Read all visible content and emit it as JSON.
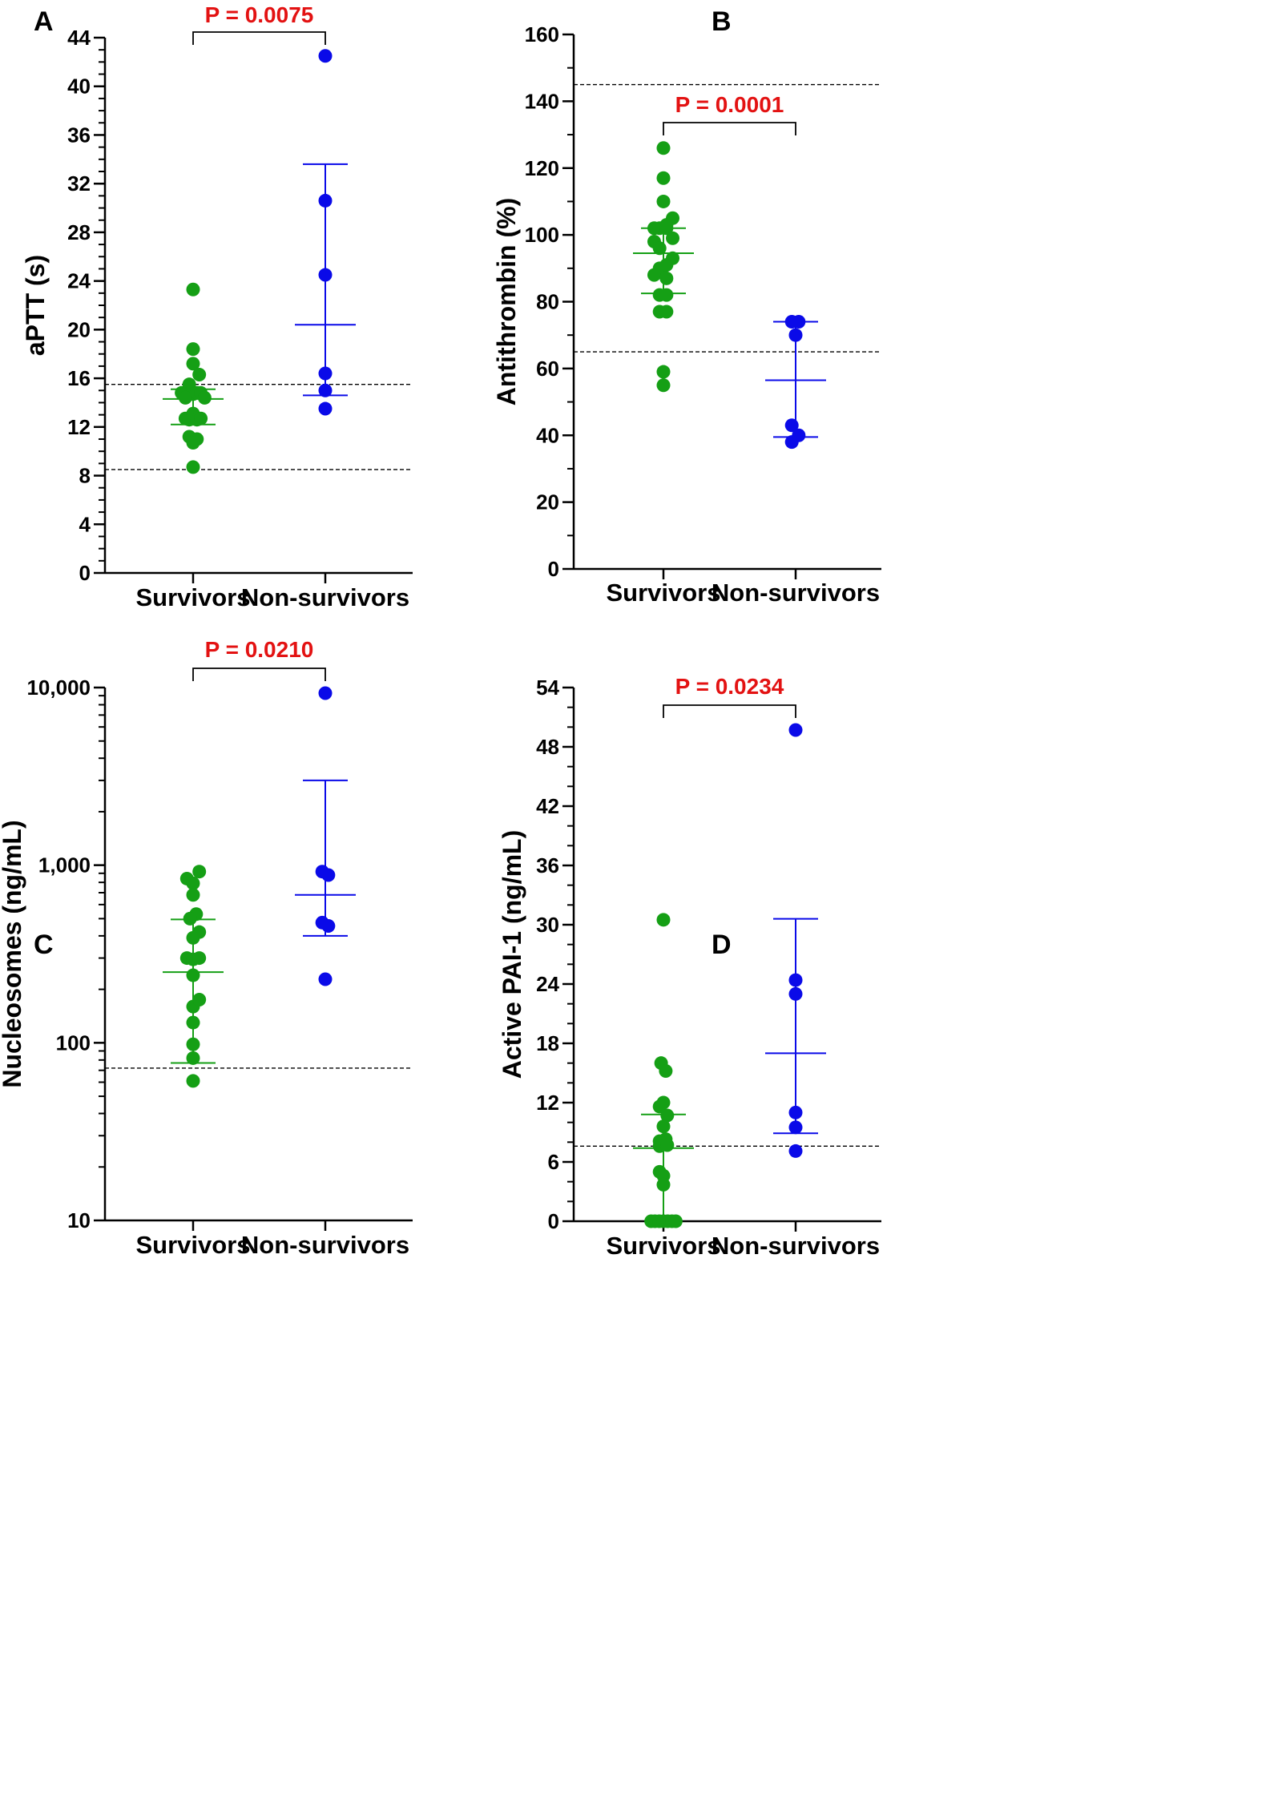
{
  "colors": {
    "survivors": "#159F15",
    "non_survivors": "#0A0AE8",
    "pvalue": "#E31212",
    "axis": "#000000"
  },
  "chart_data": [
    {
      "panel": "A",
      "type": "scatter",
      "scale": "linear",
      "ylabel": "aPTT (s)",
      "ylim": [
        0,
        44
      ],
      "yticks": [
        0,
        4,
        8,
        12,
        16,
        20,
        24,
        28,
        32,
        36,
        40,
        44
      ],
      "ytick_labels": [
        "0",
        "4",
        "8",
        "12",
        "16",
        "20",
        "24",
        "28",
        "32",
        "36",
        "40",
        "44"
      ],
      "minor_step": 1,
      "categories": [
        "Survivors",
        "Non-survivors"
      ],
      "pvalue": "P = 0.0075",
      "ref_lines": [
        15.5,
        8.5
      ],
      "series": [
        {
          "name": "Survivors",
          "points": [
            [
              0,
              23.3
            ],
            [
              0,
              18.4
            ],
            [
              0,
              17.2
            ],
            [
              0.16,
              16.3
            ],
            [
              -0.1,
              15.5
            ],
            [
              -0.3,
              14.8
            ],
            [
              -0.2,
              14.7
            ],
            [
              -0.1,
              14.7
            ],
            [
              0,
              14.7
            ],
            [
              0.1,
              14.8
            ],
            [
              0.2,
              14.8
            ],
            [
              -0.2,
              14.4
            ],
            [
              0.3,
              14.4
            ],
            [
              -0.2,
              12.7
            ],
            [
              -0.1,
              12.6
            ],
            [
              0,
              13.1
            ],
            [
              0.1,
              12.6
            ],
            [
              0.2,
              12.7
            ],
            [
              -0.1,
              11.2
            ],
            [
              0.1,
              11.0
            ],
            [
              0,
              10.7
            ],
            [
              0,
              8.7
            ]
          ],
          "error": {
            "center": 14.3,
            "low": 12.2,
            "high": 15.1
          }
        },
        {
          "name": "Non-survivors",
          "points": [
            [
              0,
              42.5
            ],
            [
              0,
              30.6
            ],
            [
              0,
              24.5
            ],
            [
              0,
              16.4
            ],
            [
              0,
              15.0
            ],
            [
              0,
              13.5
            ]
          ],
          "error": {
            "center": 20.4,
            "low": 14.6,
            "high": 33.6
          }
        }
      ]
    },
    {
      "panel": "B",
      "type": "scatter",
      "scale": "linear",
      "ylabel": "Antithrombin (%)",
      "ylim": [
        0,
        160
      ],
      "yticks": [
        0,
        20,
        40,
        60,
        80,
        100,
        120,
        140,
        160
      ],
      "ytick_labels": [
        "0",
        "20",
        "40",
        "60",
        "80",
        "100",
        "120",
        "140",
        "160"
      ],
      "minor_step": 10,
      "categories": [
        "Survivors",
        "Non-survivors"
      ],
      "pvalue": "P = 0.0001",
      "ref_lines": [
        145,
        65
      ],
      "series": [
        {
          "name": "Survivors",
          "points": [
            [
              0,
              126
            ],
            [
              0,
              117
            ],
            [
              0,
              110
            ],
            [
              0.24,
              105
            ],
            [
              -0.24,
              102
            ],
            [
              -0.1,
              102
            ],
            [
              0.08,
              102
            ],
            [
              0.08,
              103
            ],
            [
              -0.24,
              98
            ],
            [
              0.24,
              99
            ],
            [
              0.24,
              93
            ],
            [
              -0.1,
              96
            ],
            [
              -0.1,
              90
            ],
            [
              0.08,
              91
            ],
            [
              -0.24,
              88
            ],
            [
              0.08,
              87
            ],
            [
              -0.1,
              82
            ],
            [
              0.08,
              82
            ],
            [
              -0.1,
              77
            ],
            [
              0.08,
              77
            ],
            [
              0,
              59
            ],
            [
              0,
              55
            ]
          ],
          "error": {
            "center": 94.5,
            "low": 82.5,
            "high": 102.0
          }
        },
        {
          "name": "Non-survivors",
          "points": [
            [
              -0.1,
              74
            ],
            [
              0.08,
              74
            ],
            [
              0,
              70
            ],
            [
              -0.1,
              43
            ],
            [
              0.08,
              40
            ],
            [
              -0.1,
              38
            ]
          ],
          "error": {
            "center": 56.5,
            "low": 39.5,
            "high": 74.0
          }
        }
      ]
    },
    {
      "panel": "C",
      "type": "scatter",
      "scale": "log",
      "ylabel": "Nucleosomes (ng/mL)",
      "ylim": [
        10,
        10000
      ],
      "yticks": [
        10,
        100,
        1000,
        10000
      ],
      "ytick_labels": [
        "10",
        "100",
        "1,000",
        "10,000"
      ],
      "categories": [
        "Survivors",
        "Non-survivors"
      ],
      "pvalue": "P = 0.0210",
      "ref_lines": [
        72
      ],
      "series": [
        {
          "name": "Survivors",
          "points": [
            [
              -0.16,
              840
            ],
            [
              0,
              790
            ],
            [
              0.16,
              920
            ],
            [
              0,
              680
            ],
            [
              0.08,
              530
            ],
            [
              -0.08,
              500
            ],
            [
              0.16,
              420
            ],
            [
              0,
              390
            ],
            [
              -0.16,
              300
            ],
            [
              0,
              295
            ],
            [
              0.16,
              300
            ],
            [
              0,
              240
            ],
            [
              0,
              160
            ],
            [
              0.16,
              175
            ],
            [
              0,
              130
            ],
            [
              0,
              98
            ],
            [
              0,
              82
            ],
            [
              0,
              61
            ]
          ],
          "error": {
            "center": 250,
            "low": 77,
            "high": 495
          }
        },
        {
          "name": "Non-survivors",
          "points": [
            [
              0,
              9300
            ],
            [
              -0.08,
              920
            ],
            [
              0.08,
              880
            ],
            [
              -0.08,
              475
            ],
            [
              0.08,
              455
            ],
            [
              0,
              228
            ]
          ],
          "error": {
            "center": 680,
            "low": 400,
            "high": 3000
          }
        }
      ]
    },
    {
      "panel": "D",
      "type": "scatter",
      "scale": "linear",
      "ylabel": "Active PAI-1 (ng/mL)",
      "ylim": [
        0,
        54
      ],
      "yticks": [
        0,
        6,
        12,
        18,
        24,
        30,
        36,
        42,
        48,
        54
      ],
      "ytick_labels": [
        "0",
        "6",
        "12",
        "18",
        "24",
        "30",
        "36",
        "42",
        "48",
        "54"
      ],
      "minor_step": 2,
      "categories": [
        "Survivors",
        "Non-survivors"
      ],
      "pvalue": "P = 0.0234",
      "ref_lines": [
        7.6
      ],
      "series": [
        {
          "name": "Survivors",
          "points": [
            [
              0,
              30.5
            ],
            [
              -0.06,
              16.0
            ],
            [
              0.06,
              15.2
            ],
            [
              0,
              12.0
            ],
            [
              -0.1,
              11.6
            ],
            [
              0.1,
              10.7
            ],
            [
              0,
              9.6
            ],
            [
              -0.1,
              8.1
            ],
            [
              0.06,
              8.3
            ],
            [
              -0.1,
              7.6
            ],
            [
              0.1,
              7.7
            ],
            [
              -0.1,
              5.0
            ],
            [
              0,
              4.6
            ],
            [
              0,
              3.7
            ],
            [
              -0.32,
              0
            ],
            [
              -0.22,
              0
            ],
            [
              -0.11,
              0
            ],
            [
              0,
              0
            ],
            [
              0.11,
              0
            ],
            [
              0.22,
              0
            ],
            [
              0.32,
              0
            ]
          ],
          "error": {
            "center": 7.4,
            "low": 0,
            "high": 10.8
          }
        },
        {
          "name": "Non-survivors",
          "points": [
            [
              0,
              49.7
            ],
            [
              0,
              24.4
            ],
            [
              0,
              23.0
            ],
            [
              0,
              11.0
            ],
            [
              0,
              9.5
            ],
            [
              0,
              7.1
            ]
          ],
          "error": {
            "center": 17.0,
            "low": 8.9,
            "high": 30.6
          }
        }
      ]
    }
  ]
}
